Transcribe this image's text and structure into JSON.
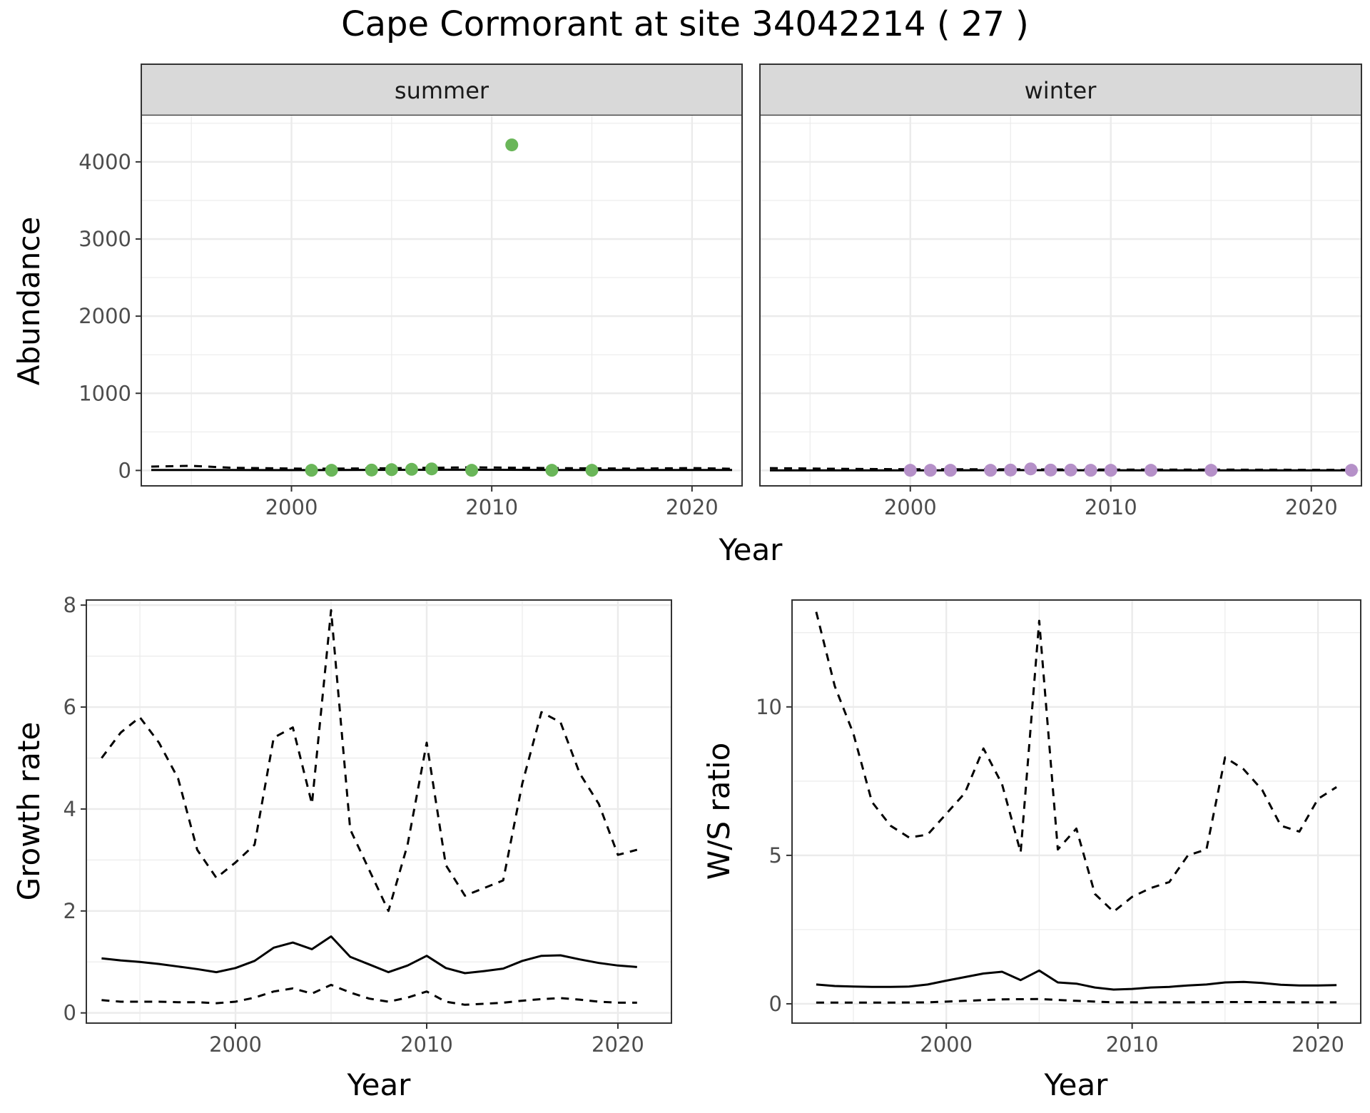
{
  "title": "Cape Cormorant at site 34042214 ( 27 )",
  "colors": {
    "summer_points": "#6ab659",
    "winter_points": "#b590c8",
    "line": "#000000",
    "grid": "#ebebeb",
    "strip_bg": "#d9d9d9"
  },
  "chart_data": [
    {
      "type": "scatter",
      "panel": "summer",
      "strip_label": "summer",
      "xlabel": "Year",
      "ylabel": "Abundance",
      "xlim": [
        1992.5,
        2022.5
      ],
      "ylim": [
        -200,
        4600
      ],
      "x_ticks": [
        2000,
        2010,
        2020
      ],
      "y_ticks": [
        0,
        1000,
        2000,
        3000,
        4000
      ],
      "grid": true,
      "points": {
        "x": [
          2001,
          2002,
          2004,
          2005,
          2006,
          2007,
          2009,
          2011,
          2013,
          2015
        ],
        "y": [
          2,
          2,
          5,
          10,
          15,
          20,
          2,
          4220,
          2,
          2
        ]
      },
      "lines": [
        {
          "style": "solid",
          "x": [
            1993,
            1997,
            2001,
            2005,
            2009,
            2013,
            2017,
            2022
          ],
          "y": [
            5,
            5,
            4,
            8,
            9,
            6,
            5,
            5
          ]
        },
        {
          "style": "dashed",
          "x": [
            1993,
            1995,
            1997,
            2001,
            2005,
            2009,
            2013,
            2017,
            2020,
            2022
          ],
          "y": [
            50,
            60,
            35,
            22,
            28,
            40,
            30,
            24,
            30,
            22
          ]
        }
      ]
    },
    {
      "type": "scatter",
      "panel": "winter",
      "strip_label": "winter",
      "xlabel": "Year",
      "ylabel": "",
      "xlim": [
        1992.5,
        2022.5
      ],
      "ylim": [
        -200,
        4600
      ],
      "x_ticks": [
        2000,
        2010,
        2020
      ],
      "grid": true,
      "points": {
        "x": [
          2000,
          2001,
          2002,
          2004,
          2005,
          2006,
          2007,
          2008,
          2009,
          2010,
          2012,
          2015,
          2022
        ],
        "y": [
          2,
          2,
          2,
          2,
          5,
          20,
          5,
          5,
          2,
          2,
          2,
          2,
          2
        ]
      },
      "lines": [
        {
          "style": "solid",
          "x": [
            1993,
            1997,
            2001,
            2005,
            2009,
            2013,
            2017,
            2022
          ],
          "y": [
            2,
            2,
            2,
            4,
            3,
            2,
            2,
            2
          ]
        },
        {
          "style": "dashed",
          "x": [
            1993,
            1996,
            2000,
            2004,
            2008,
            2012,
            2016,
            2020,
            2022
          ],
          "y": [
            30,
            22,
            15,
            15,
            12,
            10,
            10,
            8,
            8
          ]
        }
      ]
    },
    {
      "type": "line",
      "panel": "growth",
      "xlabel": "Year",
      "ylabel": "Growth rate",
      "xlim": [
        1992.2,
        2022.8
      ],
      "ylim": [
        -0.2,
        8.1
      ],
      "x_ticks": [
        2000,
        2010,
        2020
      ],
      "y_ticks": [
        0,
        2,
        4,
        6,
        8
      ],
      "grid": true,
      "series": [
        {
          "style": "solid",
          "x": [
            1993,
            1994,
            1995,
            1996,
            1997,
            1998,
            1999,
            2000,
            2001,
            2002,
            2003,
            2004,
            2005,
            2006,
            2007,
            2008,
            2009,
            2010,
            2011,
            2012,
            2013,
            2014,
            2015,
            2016,
            2017,
            2018,
            2019,
            2020,
            2021
          ],
          "y": [
            1.07,
            1.03,
            1.0,
            0.96,
            0.91,
            0.86,
            0.8,
            0.88,
            1.02,
            1.28,
            1.38,
            1.25,
            1.5,
            1.1,
            0.95,
            0.8,
            0.93,
            1.12,
            0.88,
            0.78,
            0.82,
            0.87,
            1.02,
            1.12,
            1.13,
            1.05,
            0.98,
            0.93,
            0.9
          ]
        },
        {
          "style": "dashed",
          "x": [
            1993,
            1994,
            1995,
            1996,
            1997,
            1998,
            1999,
            2000,
            2001,
            2002,
            2003,
            2004,
            2005,
            2006,
            2007,
            2008,
            2009,
            2010,
            2011,
            2012,
            2013,
            2014,
            2015,
            2016,
            2017,
            2018,
            2019,
            2020,
            2021
          ],
          "y": [
            5.0,
            5.5,
            5.8,
            5.3,
            4.6,
            3.2,
            2.65,
            2.95,
            3.3,
            5.4,
            5.6,
            4.1,
            7.9,
            3.6,
            2.8,
            2.0,
            3.3,
            5.3,
            2.9,
            2.3,
            2.45,
            2.6,
            4.5,
            5.9,
            5.7,
            4.7,
            4.1,
            3.1,
            3.2
          ]
        },
        {
          "style": "dashed",
          "x": [
            1993,
            1994,
            1995,
            1996,
            1997,
            1998,
            1999,
            2000,
            2001,
            2002,
            2003,
            2004,
            2005,
            2006,
            2007,
            2008,
            2009,
            2010,
            2011,
            2012,
            2013,
            2014,
            2015,
            2016,
            2017,
            2018,
            2019,
            2020,
            2021
          ],
          "y": [
            0.25,
            0.22,
            0.22,
            0.22,
            0.21,
            0.21,
            0.19,
            0.22,
            0.3,
            0.42,
            0.48,
            0.38,
            0.55,
            0.4,
            0.28,
            0.22,
            0.3,
            0.42,
            0.22,
            0.16,
            0.18,
            0.2,
            0.24,
            0.27,
            0.29,
            0.26,
            0.22,
            0.2,
            0.2
          ]
        }
      ]
    },
    {
      "type": "line",
      "panel": "ws-ratio",
      "xlabel": "Year",
      "ylabel": "W/S ratio",
      "xlim": [
        1991.7,
        2022.3
      ],
      "ylim": [
        -0.65,
        13.6
      ],
      "x_ticks": [
        2000,
        2010,
        2020
      ],
      "y_ticks": [
        0,
        5,
        10
      ],
      "grid": true,
      "series": [
        {
          "style": "solid",
          "x": [
            1993,
            1994,
            1995,
            1996,
            1997,
            1998,
            1999,
            2000,
            2001,
            2002,
            2003,
            2004,
            2005,
            2006,
            2007,
            2008,
            2009,
            2010,
            2011,
            2012,
            2013,
            2014,
            2015,
            2016,
            2017,
            2018,
            2019,
            2020,
            2021
          ],
          "y": [
            0.65,
            0.6,
            0.58,
            0.57,
            0.57,
            0.58,
            0.65,
            0.78,
            0.9,
            1.02,
            1.08,
            0.8,
            1.12,
            0.72,
            0.68,
            0.55,
            0.48,
            0.5,
            0.55,
            0.57,
            0.62,
            0.65,
            0.72,
            0.74,
            0.7,
            0.64,
            0.62,
            0.62,
            0.63
          ]
        },
        {
          "style": "dashed",
          "x": [
            1993,
            1994,
            1995,
            1996,
            1997,
            1998,
            1999,
            2000,
            2001,
            2002,
            2003,
            2004,
            2005,
            2006,
            2007,
            2008,
            2009,
            2010,
            2011,
            2012,
            2013,
            2014,
            2015,
            2016,
            2017,
            2018,
            2019,
            2020,
            2021
          ],
          "y": [
            13.2,
            10.7,
            9.1,
            6.8,
            6.0,
            5.6,
            5.7,
            6.4,
            7.1,
            8.6,
            7.4,
            5.1,
            12.9,
            5.2,
            5.9,
            3.7,
            3.1,
            3.6,
            3.9,
            4.1,
            5.0,
            5.2,
            8.3,
            7.9,
            7.2,
            6.0,
            5.8,
            6.9,
            7.3
          ]
        },
        {
          "style": "dashed",
          "x": [
            1993,
            1995,
            1997,
            1999,
            2001,
            2003,
            2005,
            2007,
            2009,
            2011,
            2013,
            2015,
            2017,
            2019,
            2021
          ],
          "y": [
            0.04,
            0.04,
            0.04,
            0.05,
            0.1,
            0.15,
            0.16,
            0.1,
            0.05,
            0.05,
            0.05,
            0.06,
            0.06,
            0.05,
            0.05
          ]
        }
      ]
    }
  ]
}
